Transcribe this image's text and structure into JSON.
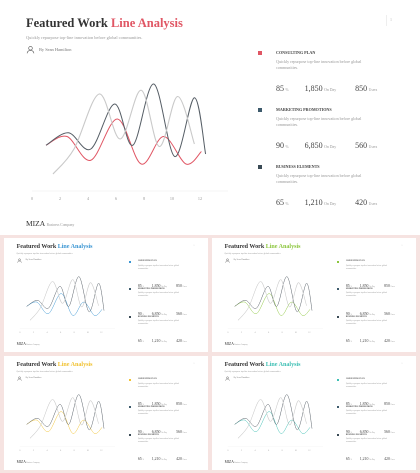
{
  "slide": {
    "title_main": "Featured Work ",
    "title_accent": "Line Analysis",
    "subtitle": "Quickly repurpose top-line innovation before global communities.",
    "author": "By Sean Hamilton",
    "brand": "MIZA",
    "brand_sub": "Business Company",
    "page_number": "1",
    "entries": [
      {
        "title": "CONSULTING PLAN",
        "desc": "Quickly repurpose top-line innovation before global communities.",
        "stats": [
          {
            "value": "85",
            "unit": "%"
          },
          {
            "value": "1,850",
            "unit": "On Day"
          },
          {
            "value": "850",
            "unit": "Users"
          }
        ]
      },
      {
        "title": "MARKETING PROMOTIONS",
        "desc": "Quickly repurpose top-line innovation before global communities.",
        "stats": [
          {
            "value": "90",
            "unit": "%"
          },
          {
            "value": "6,850",
            "unit": "On Day"
          },
          {
            "value": "560",
            "unit": "Users"
          }
        ]
      },
      {
        "title": "BUSINESS ELEMENTS",
        "desc": "Quickly repurpose top-line innovation before global communities.",
        "stats": [
          {
            "value": "65",
            "unit": "%"
          },
          {
            "value": "1,210",
            "unit": "On Day"
          },
          {
            "value": "420",
            "unit": "Users"
          }
        ]
      }
    ]
  },
  "chart_data": {
    "type": "line",
    "x": [
      0,
      2,
      4,
      6,
      8,
      10,
      12
    ],
    "xlim": [
      0,
      14
    ],
    "ylim": [
      0,
      10
    ],
    "series": [
      {
        "color": "#e05664",
        "smooth": true,
        "values": [
          [
            1,
            3.5
          ],
          [
            2.5,
            4.2
          ],
          [
            4.2,
            2.3
          ],
          [
            6.1,
            5.6
          ],
          [
            7.8,
            2.0
          ],
          [
            9.4,
            4.2
          ],
          [
            11,
            2.0
          ],
          [
            12.1,
            3.0
          ]
        ]
      },
      {
        "color": "#555d65",
        "smooth": true,
        "values": [
          [
            1,
            3.5
          ],
          [
            2.6,
            4.5
          ],
          [
            4.2,
            3.2
          ],
          [
            5.9,
            6.8
          ],
          [
            7.2,
            3.5
          ],
          [
            8.7,
            8.4
          ],
          [
            10.2,
            2.6
          ],
          [
            11.6,
            7.3
          ],
          [
            12.4,
            2.8
          ]
        ]
      },
      {
        "color": "#c9c9c9",
        "smooth": true,
        "values": [
          [
            1.5,
            1.2
          ],
          [
            3,
            3.2
          ],
          [
            4.8,
            7.6
          ],
          [
            6.3,
            4.0
          ],
          [
            7.8,
            7.9
          ],
          [
            9.1,
            3.4
          ],
          [
            10.4,
            7.4
          ],
          [
            11.6,
            3.6
          ]
        ]
      }
    ]
  },
  "thumbnails": [
    {
      "accent": "#3b96d3",
      "accent_class": "accent-blue",
      "colors": [
        "#3b96d3",
        "#555d65",
        "#c9c9c9"
      ]
    },
    {
      "accent": "#8cc63e",
      "accent_class": "accent-green",
      "colors": [
        "#8cc63e",
        "#555d65",
        "#c9c9c9"
      ]
    },
    {
      "accent": "#f1c232",
      "accent_class": "accent-yellow",
      "colors": [
        "#f1c232",
        "#555d65",
        "#c9c9c9"
      ]
    },
    {
      "accent": "#3ebfb4",
      "accent_class": "accent-teal",
      "colors": [
        "#3ebfb4",
        "#555d65",
        "#c9c9c9"
      ]
    }
  ],
  "dot_colors": [
    "#e05664",
    "#3d5a6c",
    "#3a4a55"
  ]
}
